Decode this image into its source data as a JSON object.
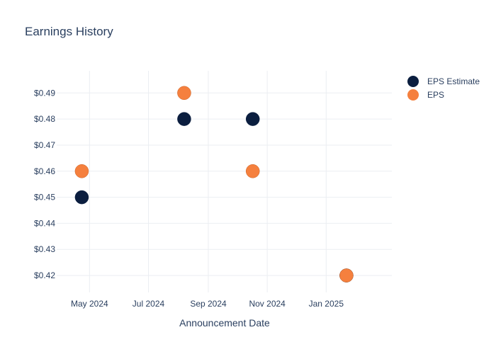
{
  "chart_data": {
    "type": "scatter",
    "title": "Earnings History",
    "xlabel": "Announcement Date",
    "ylabel": "",
    "x_ticks": [
      {
        "date": "2024-05-01",
        "label": "May 2024"
      },
      {
        "date": "2024-07-01",
        "label": "Jul 2024"
      },
      {
        "date": "2024-09-01",
        "label": "Sep 2024"
      },
      {
        "date": "2024-11-01",
        "label": "Nov 2024"
      },
      {
        "date": "2025-01-01",
        "label": "Jan 2025"
      }
    ],
    "xlim": [
      "2024-03-28",
      "2025-03-10"
    ],
    "y_ticks": [
      0.42,
      0.43,
      0.44,
      0.45,
      0.46,
      0.47,
      0.48,
      0.49
    ],
    "y_tick_prefix": "$",
    "ylim": [
      0.4135,
      0.4985
    ],
    "grid": true,
    "legend_position": "top-right",
    "series": [
      {
        "name": "EPS Estimate",
        "color": "#0b1e3f",
        "points": [
          {
            "x": "2024-04-23",
            "y": 0.45
          },
          {
            "x": "2024-08-07",
            "y": 0.48
          },
          {
            "x": "2024-10-17",
            "y": 0.48
          },
          {
            "x": "2025-01-22",
            "y": 0.42
          }
        ]
      },
      {
        "name": "EPS",
        "color": "#f5803e",
        "points": [
          {
            "x": "2024-04-23",
            "y": 0.46
          },
          {
            "x": "2024-08-07",
            "y": 0.49
          },
          {
            "x": "2024-10-17",
            "y": 0.46
          },
          {
            "x": "2025-01-22",
            "y": 0.42
          }
        ]
      }
    ]
  }
}
